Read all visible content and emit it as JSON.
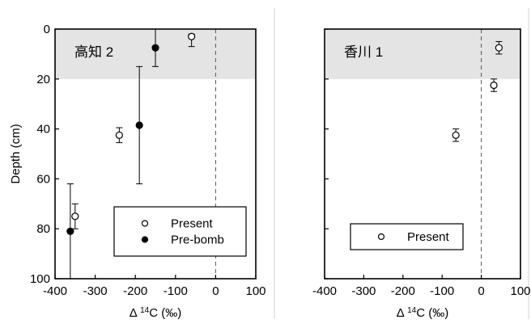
{
  "chart_data": [
    {
      "type": "scatter",
      "panel_label": "高知 2",
      "xlabel": {
        "prefix": "Δ",
        "superscript": "14",
        "suffix": "C (‰)"
      },
      "ylabel": "Depth (cm)",
      "xlim": [
        -400,
        100
      ],
      "ylim": [
        100,
        0
      ],
      "xticks": [
        -400,
        -300,
        -200,
        -100,
        0,
        100
      ],
      "yticks": [
        0,
        20,
        40,
        60,
        80,
        100
      ],
      "shaded_depth_range": [
        0,
        20
      ],
      "shade_color": "#e4e4e4",
      "zero_reference_dashed": true,
      "grid": false,
      "legend_position": "bottom-right",
      "series": [
        {
          "name": "Present",
          "marker": "open-circle",
          "points": [
            {
              "x": -60,
              "y": 3,
              "yerr": [
                1,
                4
              ],
              "xerr": 0
            },
            {
              "x": -240,
              "y": 42.5,
              "yerr": [
                3,
                3
              ],
              "xerr": 0
            },
            {
              "x": -350,
              "y": 75,
              "yerr": [
                5,
                5
              ],
              "xerr": 0
            }
          ]
        },
        {
          "name": "Pre-bomb",
          "marker": "filled-circle",
          "points": [
            {
              "x": -150,
              "y": 7.5,
              "yerr": [
                7.5,
                7.5
              ],
              "xerr": 0
            },
            {
              "x": -190,
              "y": 38.5,
              "yerr": [
                23.5,
                23.5
              ],
              "xerr": 0
            },
            {
              "x": -362,
              "y": 81,
              "yerr": [
                19,
                19
              ],
              "xerr": 0
            }
          ]
        }
      ]
    },
    {
      "type": "scatter",
      "panel_label": "香川 1",
      "xlabel": {
        "prefix": "Δ",
        "superscript": "14",
        "suffix": "C (‰)"
      },
      "ylabel": "",
      "xlim": [
        -400,
        100
      ],
      "ylim": [
        100,
        0
      ],
      "xticks": [
        -400,
        -300,
        -200,
        -100,
        0,
        100
      ],
      "yticks": [
        0,
        20,
        40,
        60,
        80,
        100
      ],
      "show_y_tick_labels": false,
      "shaded_depth_range": [
        0,
        20
      ],
      "shade_color": "#e4e4e4",
      "zero_reference_dashed": true,
      "grid": false,
      "legend_position": "bottom-right",
      "series": [
        {
          "name": "Present",
          "marker": "open-circle",
          "points": [
            {
              "x": 45,
              "y": 7.5,
              "yerr": [
                2.5,
                2.5
              ],
              "xerr": 0
            },
            {
              "x": 32,
              "y": 22.5,
              "yerr": [
                2.5,
                2.5
              ],
              "xerr": 0
            },
            {
              "x": -65,
              "y": 42.5,
              "yerr": [
                2.5,
                2.5
              ],
              "xerr": 0
            }
          ]
        }
      ]
    }
  ]
}
